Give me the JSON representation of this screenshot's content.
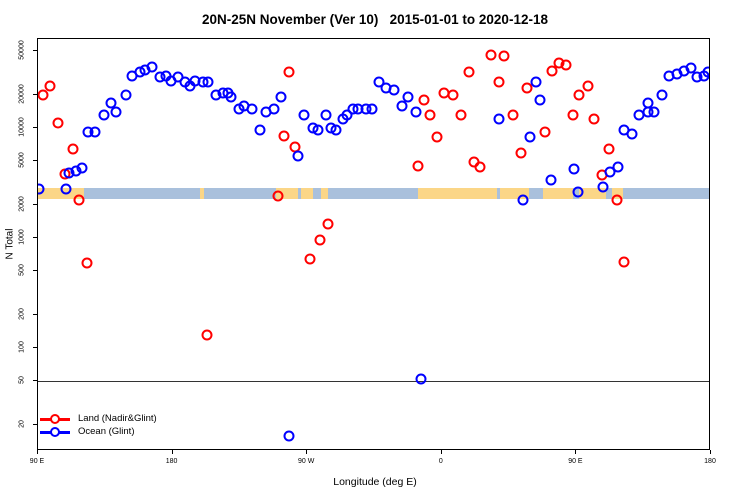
{
  "title": "20N-25N November (Ver 10)   2015-01-01 to 2020-12-18",
  "axes": {
    "y_label": "N Total",
    "x_label": "Longitude (deg E)",
    "y_ticks": [
      20,
      50,
      100,
      200,
      500,
      1000,
      2000,
      5000,
      10000,
      20000,
      50000
    ],
    "x_ticks": [
      {
        "lon": 90,
        "label": "90 E"
      },
      {
        "lon": 180,
        "label": "180"
      },
      {
        "lon": 270,
        "label": "90 W"
      },
      {
        "lon": 360,
        "label": "0"
      },
      {
        "lon": 450,
        "label": "90 E"
      },
      {
        "lon": 540,
        "label": "180"
      }
    ]
  },
  "legend": [
    {
      "label": "Land (Nadir&Glint)",
      "color": "#ff0000"
    },
    {
      "label": "Ocean (Glint)",
      "color": "#0000ff"
    }
  ],
  "colors": {
    "land_series": "#ff0000",
    "ocean_series": "#0000ff",
    "map_ocean_band": "#a9c0dc",
    "map_land_band": "#fbd687",
    "reference_line": "#333333"
  },
  "chart_data": {
    "type": "scatter",
    "title": "20N-25N November (Ver 10)   2015-01-01 to 2020-12-18",
    "xlabel": "Longitude (deg E)",
    "ylabel": "N Total",
    "x_axis_deg_range": [
      90,
      540
    ],
    "y_scale": "log",
    "y_range": [
      12,
      64000
    ],
    "grid": false,
    "legend_position": "bottom-left-inside",
    "reference_line_y": 50,
    "map_band": {
      "description": "world map strip 20N-25N drawn across plot",
      "value_range": [
        2260,
        2850
      ],
      "land_segments_deg": [
        [
          90,
          121
        ],
        [
          198,
          201
        ],
        [
          249,
          264
        ],
        [
          266,
          274
        ],
        [
          279,
          284
        ],
        [
          344,
          397
        ],
        [
          399,
          418
        ],
        [
          428,
          448
        ],
        [
          452,
          470
        ],
        [
          474,
          481
        ]
      ]
    },
    "series": [
      {
        "name": "Land (Nadir&Glint)",
        "color": "#ff0000",
        "points": [
          [
            93.3,
            20000
          ],
          [
            98,
            24000
          ],
          [
            103.4,
            11000
          ],
          [
            108,
            3800
          ],
          [
            113.4,
            6400
          ],
          [
            117.4,
            2200
          ],
          [
            122.8,
            590
          ],
          [
            203,
            130
          ],
          [
            250.5,
            2400
          ],
          [
            254.5,
            8400
          ],
          [
            257.8,
            32000
          ],
          [
            261.8,
            6700
          ],
          [
            271.9,
            640
          ],
          [
            278.6,
            960
          ],
          [
            283.9,
            1340
          ],
          [
            344.1,
            4500
          ],
          [
            348.1,
            18000
          ],
          [
            352.1,
            13000
          ],
          [
            356.8,
            8300
          ],
          [
            361.5,
            21000
          ],
          [
            367.5,
            20000
          ],
          [
            372.8,
            13000
          ],
          [
            378.2,
            32000
          ],
          [
            381.5,
            4900
          ],
          [
            385.6,
            4400
          ],
          [
            392.9,
            46000
          ],
          [
            398.3,
            26000
          ],
          [
            401.5,
            45000
          ],
          [
            407.6,
            13000
          ],
          [
            413,
            5900
          ],
          [
            417,
            23000
          ],
          [
            429,
            9200
          ],
          [
            433.7,
            33000
          ],
          [
            438.4,
            39000
          ],
          [
            443,
            37000
          ],
          [
            447.7,
            13000
          ],
          [
            451.8,
            20000
          ],
          [
            457.8,
            24000
          ],
          [
            461.8,
            12000
          ],
          [
            467.1,
            3700
          ],
          [
            471.8,
            6400
          ],
          [
            477.2,
            2200
          ],
          [
            481.8,
            600
          ]
        ]
      },
      {
        "name": "Ocean (Glint)",
        "color": "#0000ff",
        "points": [
          [
            90.7,
            2800
          ],
          [
            108.7,
            2800
          ],
          [
            110.7,
            3900
          ],
          [
            115.4,
            4100
          ],
          [
            119.4,
            4300
          ],
          [
            123.4,
            9200
          ],
          [
            128.1,
            9200
          ],
          [
            134.1,
            13000
          ],
          [
            138.8,
            17000
          ],
          [
            142.2,
            14000
          ],
          [
            148.8,
            20000
          ],
          [
            152.9,
            30000
          ],
          [
            158.2,
            32000
          ],
          [
            161.5,
            34000
          ],
          [
            166.2,
            36000
          ],
          [
            171.6,
            29000
          ],
          [
            175.6,
            30000
          ],
          [
            178.9,
            27000
          ],
          [
            183.6,
            29000
          ],
          [
            188.3,
            26000
          ],
          [
            191.6,
            24000
          ],
          [
            195,
            27000
          ],
          [
            200.1,
            26000
          ],
          [
            203.7,
            26000
          ],
          [
            209,
            20000
          ],
          [
            213.7,
            21000
          ],
          [
            217,
            21000
          ],
          [
            219,
            19000
          ],
          [
            224.4,
            15000
          ],
          [
            227.7,
            16000
          ],
          [
            233.1,
            15000
          ],
          [
            238.4,
            9600
          ],
          [
            242.5,
            14000
          ],
          [
            247.8,
            15000
          ],
          [
            252.5,
            19000
          ],
          [
            257.8,
            16
          ],
          [
            263.8,
            5600
          ],
          [
            267.8,
            13000
          ],
          [
            273.9,
            10000
          ],
          [
            277.2,
            9600
          ],
          [
            282.6,
            13000
          ],
          [
            285.9,
            10000
          ],
          [
            289.3,
            9600
          ],
          [
            294,
            12000
          ],
          [
            296.6,
            13000
          ],
          [
            300.6,
            15000
          ],
          [
            303.9,
            15000
          ],
          [
            309.3,
            15000
          ],
          [
            313.3,
            15000
          ],
          [
            318,
            26000
          ],
          [
            322.7,
            23000
          ],
          [
            328,
            22000
          ],
          [
            333.4,
            16000
          ],
          [
            337.4,
            19000
          ],
          [
            342.7,
            14000
          ],
          [
            346.1,
            52
          ],
          [
            398.3,
            12000
          ],
          [
            414.3,
            2200
          ],
          [
            419,
            8300
          ],
          [
            423,
            26000
          ],
          [
            425.9,
            18000
          ],
          [
            433,
            3400
          ],
          [
            448.4,
            4200
          ],
          [
            451.1,
            2600
          ],
          [
            467.8,
            2900
          ],
          [
            472.5,
            4000
          ],
          [
            477.8,
            4400
          ],
          [
            481.8,
            9600
          ],
          [
            487.2,
            8800
          ],
          [
            491.9,
            13000
          ],
          [
            497.9,
            17000
          ],
          [
            497.9,
            14000
          ],
          [
            501.9,
            14000
          ],
          [
            507.3,
            20000
          ],
          [
            512,
            30000
          ],
          [
            517.3,
            31000
          ],
          [
            522,
            33000
          ],
          [
            526.7,
            35000
          ],
          [
            530.7,
            29000
          ],
          [
            535.3,
            30000
          ],
          [
            538,
            32000
          ]
        ]
      }
    ]
  }
}
